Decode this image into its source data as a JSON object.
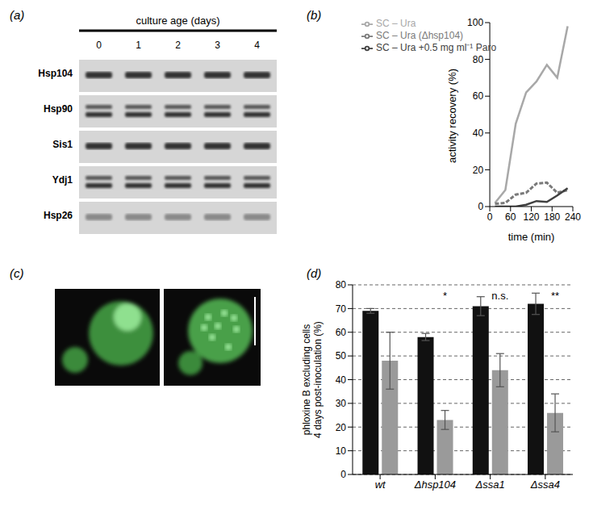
{
  "chart_data": [
    {
      "type": "blot",
      "panel": "(a)",
      "title": "culture age (days)",
      "lanes": [
        "0",
        "1",
        "2",
        "3",
        "4"
      ],
      "rows": [
        "Hsp104",
        "Hsp90",
        "Sis1",
        "Ydj1",
        "Hsp26"
      ]
    },
    {
      "type": "line",
      "panel": "(b)",
      "x": [
        15,
        45,
        75,
        105,
        135,
        165,
        195,
        225
      ],
      "series": [
        {
          "name": "SC – Ura",
          "color": "#a8a8a8",
          "line_style": "solid",
          "values": [
            2,
            9,
            45,
            62,
            68,
            77,
            70,
            98
          ]
        },
        {
          "name": "SC – Ura (Δhsp104)",
          "color": "#7a7a7a",
          "line_style": "dashed",
          "values": [
            1.5,
            2,
            6.5,
            7.5,
            12.5,
            13,
            7.5,
            9
          ]
        },
        {
          "name": "SC – Ura +0.5 mg ml⁻¹ Paro",
          "color": "#404040",
          "line_style": "solid",
          "values": [
            0,
            0,
            0,
            1,
            3,
            2.5,
            6,
            10
          ]
        }
      ],
      "xlim": [
        0,
        240
      ],
      "xticks": [
        0,
        60,
        120,
        180,
        240
      ],
      "ylim": [
        0,
        100
      ],
      "yticks": [
        0,
        20,
        40,
        60,
        80,
        100
      ],
      "x_label": "time (min)",
      "y_label": "activity recovery (%)",
      "legend": "top-left"
    },
    {
      "type": "image",
      "panel": "(c)"
    },
    {
      "type": "bar",
      "panel": "(d)",
      "categories": [
        "wt",
        "Δhsp104",
        "Δssa1",
        "Δssa4"
      ],
      "series": [
        {
          "color": "#111111",
          "values": [
            69,
            58,
            71,
            72
          ],
          "errors": [
            1,
            1.5,
            4,
            4.5
          ]
        },
        {
          "color": "#9a9a9a",
          "values": [
            48,
            23,
            44,
            26
          ],
          "errors": [
            12,
            4,
            7,
            8
          ]
        }
      ],
      "ylim": [
        0,
        80
      ],
      "yticks": [
        0,
        10,
        20,
        30,
        40,
        50,
        60,
        70,
        80
      ],
      "y_label": "phloxine B excluding cells 4 days post-inoculation (%)",
      "grid": true,
      "annotations": [
        {
          "category": "Δhsp104",
          "text": "*"
        },
        {
          "category": "Δssa1",
          "text": "n.s."
        },
        {
          "category": "Δssa4",
          "text": "**"
        }
      ]
    }
  ]
}
